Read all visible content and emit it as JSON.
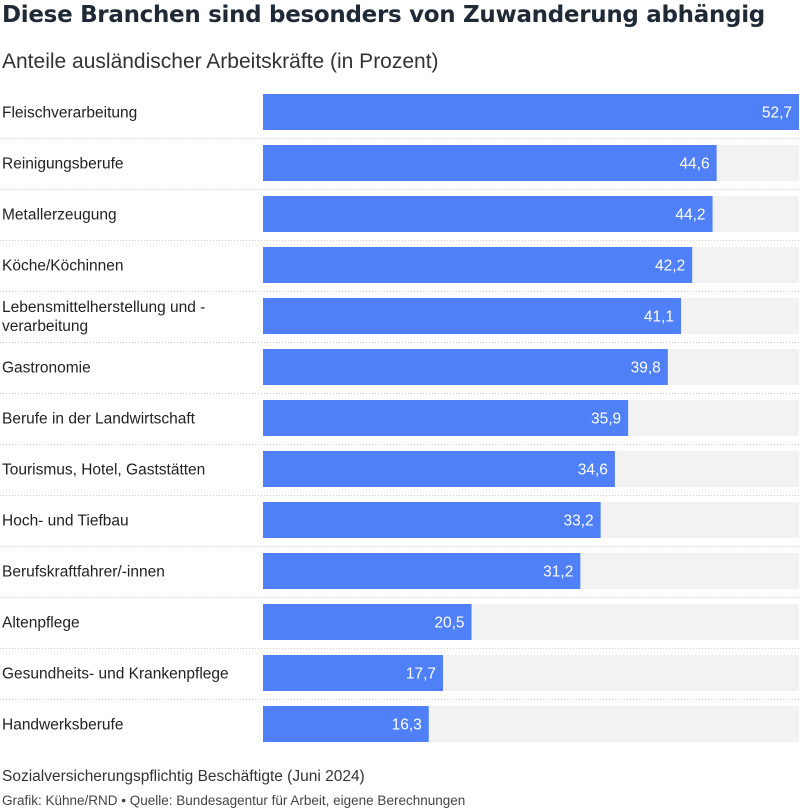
{
  "title": "Diese Branchen sind besonders von Zuwanderung abhängig",
  "subtitle": "Anteile ausländischer Arbeitskräfte (in Prozent)",
  "footer": {
    "note": "Sozialversicherungspflichtig Beschäftigte (Juni 2024)",
    "credit": "Grafik: Kühne/RND • Quelle: Bundesagentur für Arbeit, eigene Berechnungen"
  },
  "colors": {
    "bar": "#4f80f7",
    "track": "#f2f2f2",
    "label": "#222222",
    "value_text": "#ffffff",
    "divider": "#cccccc"
  },
  "chart_data": {
    "type": "bar",
    "orientation": "horizontal",
    "categories": [
      "Fleischverarbeitung",
      "Reinigungsberufe",
      "Metallerzeugung",
      "Köche/Köchinnen",
      "Lebensmittelherstellung und -verarbeitung",
      "Gastronomie",
      "Berufe in der Landwirtschaft",
      "Tourismus, Hotel, Gaststätten",
      "Hoch- und Tiefbau",
      "Berufskraftfahrer/-innen",
      "Altenpflege",
      "Gesundheits- und Krankenpflege",
      "Handwerksberufe"
    ],
    "category_lines": [
      [
        "Fleischverarbeitung"
      ],
      [
        "Reinigungsberufe"
      ],
      [
        "Metallerzeugung"
      ],
      [
        "Köche/Köchinnen"
      ],
      [
        "Lebensmittelherstellung und -",
        "verarbeitung"
      ],
      [
        "Gastronomie"
      ],
      [
        "Berufe in der Landwirtschaft"
      ],
      [
        "Tourismus, Hotel, Gaststätten"
      ],
      [
        "Hoch- und Tiefbau"
      ],
      [
        "Berufskraftfahrer/-innen"
      ],
      [
        "Altenpflege"
      ],
      [
        "Gesundheits- und Krankenpflege"
      ],
      [
        "Handwerksberufe"
      ]
    ],
    "values": [
      52.7,
      44.6,
      44.2,
      42.2,
      41.1,
      39.8,
      35.9,
      34.6,
      33.2,
      31.2,
      20.5,
      17.7,
      16.3
    ],
    "value_labels": [
      "52,7",
      "44,6",
      "44,2",
      "42,2",
      "41,1",
      "39,8",
      "35,9",
      "34,6",
      "33,2",
      "31,2",
      "20,5",
      "17,7",
      "16,3"
    ],
    "xlim": [
      0,
      52.7
    ],
    "xlabel": "",
    "ylabel": "",
    "grid": false,
    "legend": "none"
  }
}
